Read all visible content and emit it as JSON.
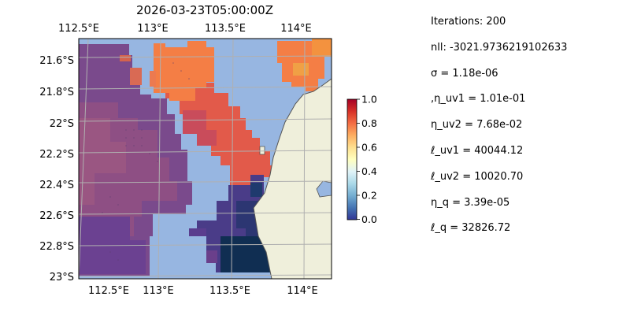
{
  "map": {
    "title": "2026-03-23T05:00:00Z",
    "lon_ticks": [
      "112.5°E",
      "113°E",
      "113.5°E",
      "114°E"
    ],
    "lat_ticks": [
      "21.6°S",
      "21.8°S",
      "22°S",
      "22.2°S",
      "22.4°S",
      "22.6°S",
      "22.8°S",
      "23°S"
    ],
    "extent": {
      "lon_min": 112.5,
      "lon_max": 114.25,
      "lat_min": -23.0,
      "lat_max": -21.4
    },
    "colormap": "RdYlBu_r",
    "colors": {
      "ocean": "#97b6e1",
      "land": "#efefdb",
      "coast": "#555555",
      "grid": "#b0b0b0"
    }
  },
  "colorbar": {
    "ticks": [
      "0.0",
      "0.2",
      "0.4",
      "0.6",
      "0.8",
      "1.0"
    ],
    "range": [
      0.0,
      1.0
    ]
  },
  "params": {
    "lines": [
      "Iterations: 200",
      "nll: -3021.9736219102633",
      "σ = 1.18e-06",
      ",η_uv1 = 1.01e-01",
      "η_uv2 = 7.68e-02",
      "ℓ_uv1 = 40044.12",
      "ℓ_uv2 = 10020.70",
      "η_q = 3.39e-05",
      "ℓ_q = 32826.72"
    ]
  }
}
